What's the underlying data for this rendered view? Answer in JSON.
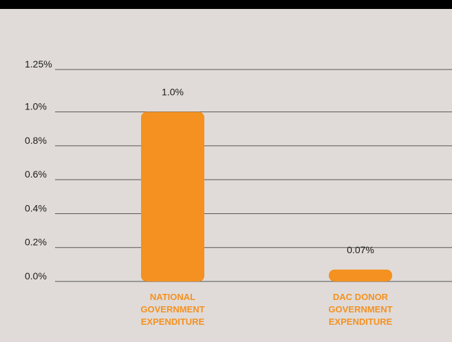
{
  "colors": {
    "background": "#e0dbd8",
    "top_bar": "#000000",
    "bar": "#f49120",
    "category_label": "#f49120",
    "text": "#1a1a1a",
    "gridline": "#555555"
  },
  "chart_data": {
    "type": "bar",
    "title": "",
    "xlabel": "",
    "ylabel": "",
    "ylim": [
      0,
      1.25
    ],
    "grid": true,
    "y_ticks": [
      {
        "value": 0.0,
        "label": "0.0%"
      },
      {
        "value": 0.2,
        "label": "0.2%"
      },
      {
        "value": 0.4,
        "label": "0.4%"
      },
      {
        "value": 0.6,
        "label": "0.6%"
      },
      {
        "value": 0.8,
        "label": "0.8%"
      },
      {
        "value": 1.0,
        "label": "1.0%"
      },
      {
        "value": 1.25,
        "label": "1.25%"
      }
    ],
    "categories": [
      "NATIONAL GOVERNMENT EXPENDITURE",
      "DAC DONOR GOVERNMENT EXPENDITURE"
    ],
    "category_label_lines": [
      [
        "NATIONAL",
        "GOVERNMENT",
        "EXPENDITURE"
      ],
      [
        "DAC DONOR",
        "GOVERNMENT",
        "EXPENDITURE"
      ]
    ],
    "values": [
      1.0,
      0.07
    ],
    "data_labels": [
      "1.0%",
      "0.07%"
    ]
  }
}
